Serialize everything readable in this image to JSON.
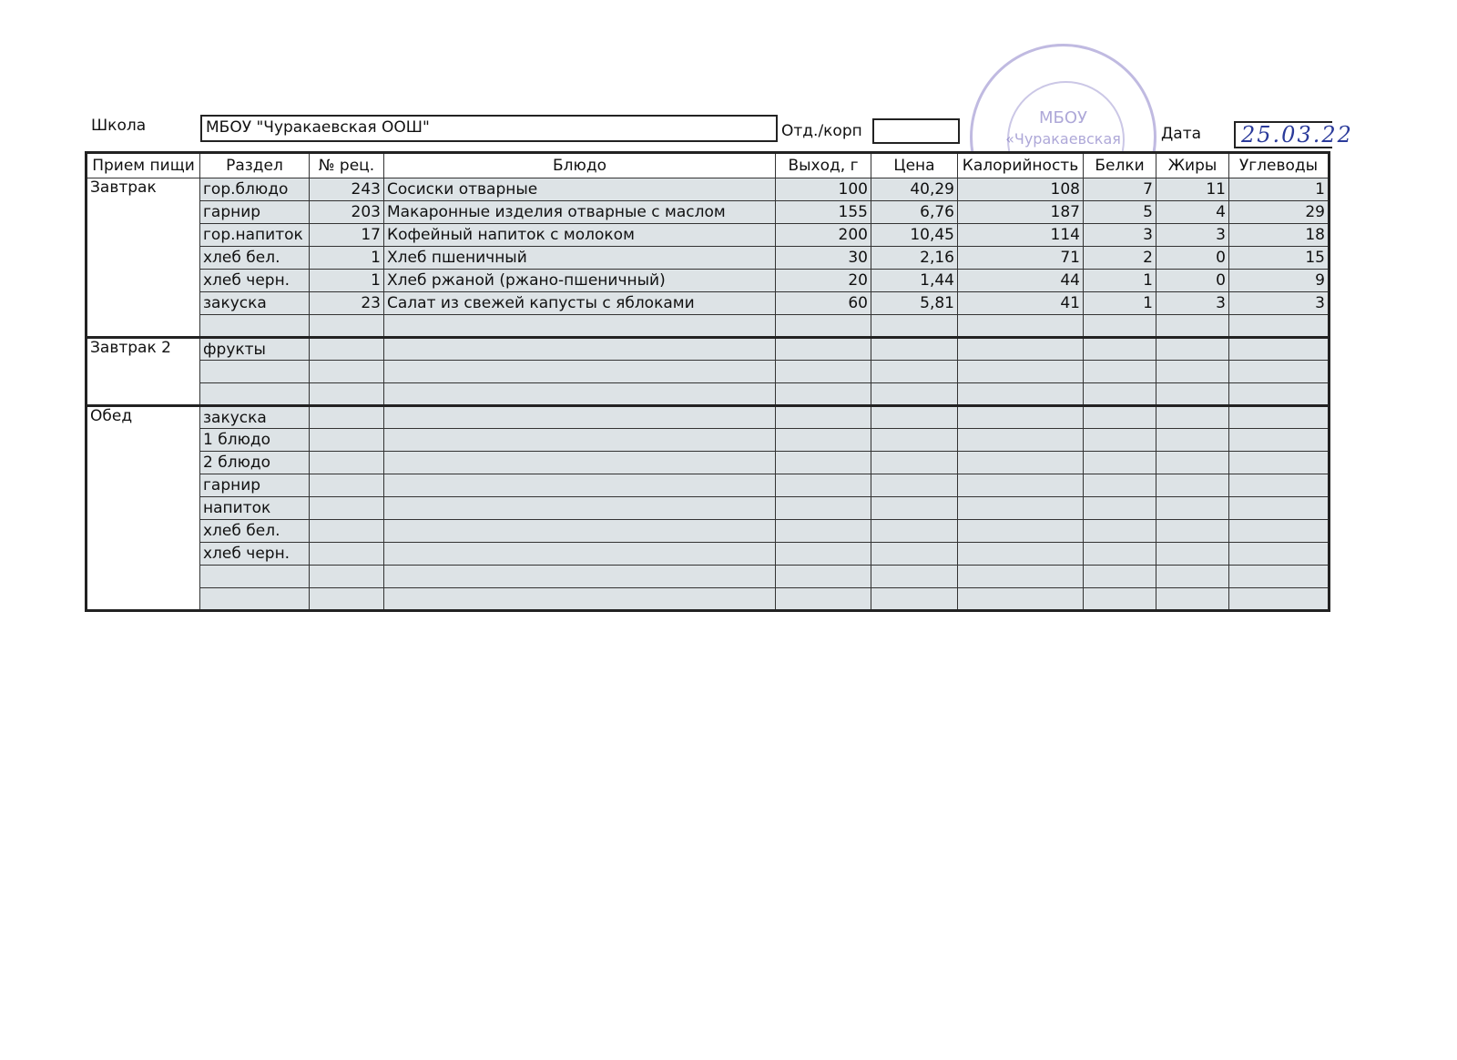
{
  "header": {
    "school_label": "Школа",
    "school_value": "МБОУ \"Чуракаевская ООШ\"",
    "dept_label": "Отд./корп",
    "dept_value": "",
    "date_label": "Дата",
    "date_value": "25.03.22"
  },
  "stamp": {
    "line1": "МБОУ",
    "line2": "«Чуракаевская"
  },
  "table": {
    "columns": [
      "Прием пищи",
      "Раздел",
      "№ рец.",
      "Блюдо",
      "Выход, г",
      "Цена",
      "Калорийность",
      "Белки",
      "Жиры",
      "Углеводы"
    ],
    "meals": [
      {
        "name": "Завтрак",
        "rows": [
          [
            "гор.блюдо",
            "243",
            "Сосиски отварные",
            "100",
            "40,29",
            "108",
            "7",
            "11",
            "1"
          ],
          [
            "гарнир",
            "203",
            "Макаронные изделия отварные с маслом",
            "155",
            "6,76",
            "187",
            "5",
            "4",
            "29"
          ],
          [
            "гор.напиток",
            "17",
            "Кофейный напиток с молоком",
            "200",
            "10,45",
            "114",
            "3",
            "3",
            "18"
          ],
          [
            "хлеб бел.",
            "1",
            "Хлеб пшеничный",
            "30",
            "2,16",
            "71",
            "2",
            "0",
            "15"
          ],
          [
            "хлеб черн.",
            "1",
            "Хлеб ржаной (ржано-пшеничный)",
            "20",
            "1,44",
            "44",
            "1",
            "0",
            "9"
          ],
          [
            "закуска",
            "23",
            "Салат из свежей капусты с яблоками",
            "60",
            "5,81",
            "41",
            "1",
            "3",
            "3"
          ],
          [
            "",
            "",
            "",
            "",
            "",
            "",
            "",
            "",
            ""
          ]
        ]
      },
      {
        "name": "Завтрак 2",
        "rows": [
          [
            "фрукты",
            "",
            "",
            "",
            "",
            "",
            "",
            "",
            ""
          ],
          [
            "",
            "",
            "",
            "",
            "",
            "",
            "",
            "",
            ""
          ],
          [
            "",
            "",
            "",
            "",
            "",
            "",
            "",
            "",
            ""
          ]
        ]
      },
      {
        "name": "Обед",
        "rows": [
          [
            "закуска",
            "",
            "",
            "",
            "",
            "",
            "",
            "",
            ""
          ],
          [
            "1 блюдо",
            "",
            "",
            "",
            "",
            "",
            "",
            "",
            ""
          ],
          [
            "2 блюдо",
            "",
            "",
            "",
            "",
            "",
            "",
            "",
            ""
          ],
          [
            "гарнир",
            "",
            "",
            "",
            "",
            "",
            "",
            "",
            ""
          ],
          [
            "напиток",
            "",
            "",
            "",
            "",
            "",
            "",
            "",
            ""
          ],
          [
            "хлеб бел.",
            "",
            "",
            "",
            "",
            "",
            "",
            "",
            ""
          ],
          [
            "хлеб черн.",
            "",
            "",
            "",
            "",
            "",
            "",
            "",
            ""
          ],
          [
            "",
            "",
            "",
            "",
            "",
            "",
            "",
            "",
            ""
          ],
          [
            "",
            "",
            "",
            "",
            "",
            "",
            "",
            "",
            ""
          ]
        ]
      }
    ]
  }
}
